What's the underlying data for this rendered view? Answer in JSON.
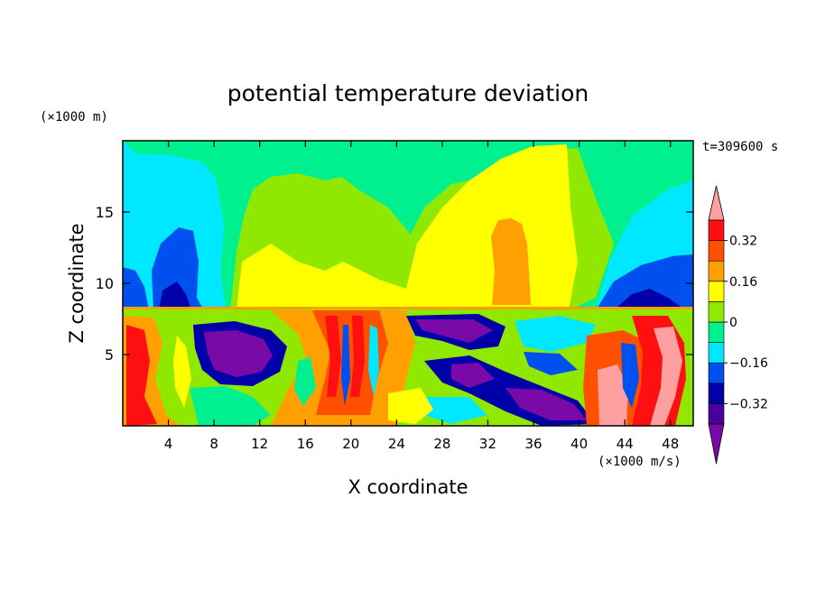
{
  "chart_data": {
    "type": "heatmap",
    "title": "potential temperature deviation",
    "xlabel": "X coordinate",
    "ylabel": "Z coordinate",
    "x_units": "(×1000 m/s)",
    "y_units": "(×1000 m)",
    "time_label": "t=309600 s",
    "xlim": [
      0,
      50
    ],
    "ylim": [
      0,
      20
    ],
    "x_ticks": [
      4,
      8,
      12,
      16,
      20,
      24,
      28,
      32,
      36,
      40,
      44,
      48
    ],
    "y_ticks": [
      5,
      10,
      15
    ],
    "colorbar": {
      "levels": [
        -0.4,
        -0.32,
        -0.24,
        -0.16,
        -0.08,
        0,
        0.08,
        0.16,
        0.24,
        0.32,
        0.4
      ],
      "tick_labels": [
        "0.32",
        "0.16",
        "0",
        "−0.16",
        "−0.32"
      ],
      "tick_values": [
        0.32,
        0.16,
        0,
        -0.16,
        -0.32
      ],
      "colors": [
        "#7a0aa8",
        "#4a009c",
        "#0000a8",
        "#0050f0",
        "#00e8ff",
        "#00f090",
        "#90e800",
        "#ffff00",
        "#ffa000",
        "#ff5000",
        "#ff1010",
        "#ffa0a0"
      ],
      "extend": "both"
    }
  }
}
